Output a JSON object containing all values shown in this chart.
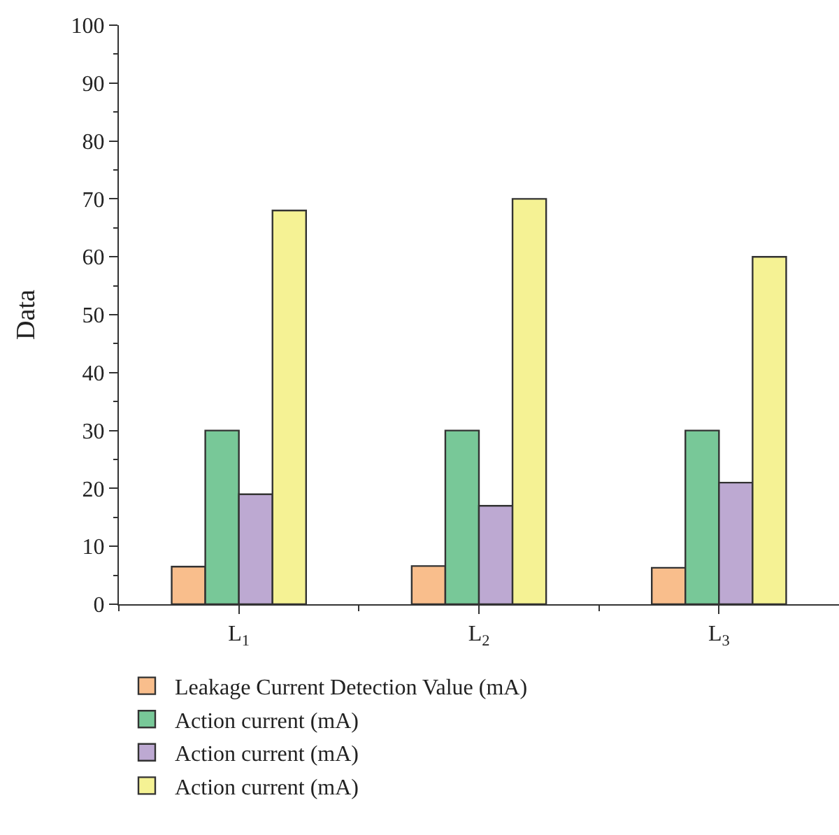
{
  "chart_data": {
    "type": "bar",
    "ylabel": "Data",
    "categories": [
      "L$_{1}$",
      "L$_{2}$",
      "L$_{3}$"
    ],
    "series": [
      {
        "name": "Leakage Current Detection Value (mA)",
        "color": "#f9be8c",
        "values": [
          6.5,
          6.6,
          6.3
        ]
      },
      {
        "name": "Action current (mA)",
        "color": "#78c898",
        "values": [
          30,
          30,
          30
        ]
      },
      {
        "name": "Action current (mA)",
        "color": "#bda9d2",
        "values": [
          19,
          17,
          21
        ]
      },
      {
        "name": "Action current (mA)",
        "color": "#f5f294",
        "values": [
          68,
          70,
          60
        ]
      }
    ],
    "ylim": [
      0,
      100
    ],
    "yticks": [
      0,
      10,
      20,
      30,
      40,
      50,
      60,
      70,
      80,
      90,
      100
    ],
    "legend": "bottom"
  }
}
